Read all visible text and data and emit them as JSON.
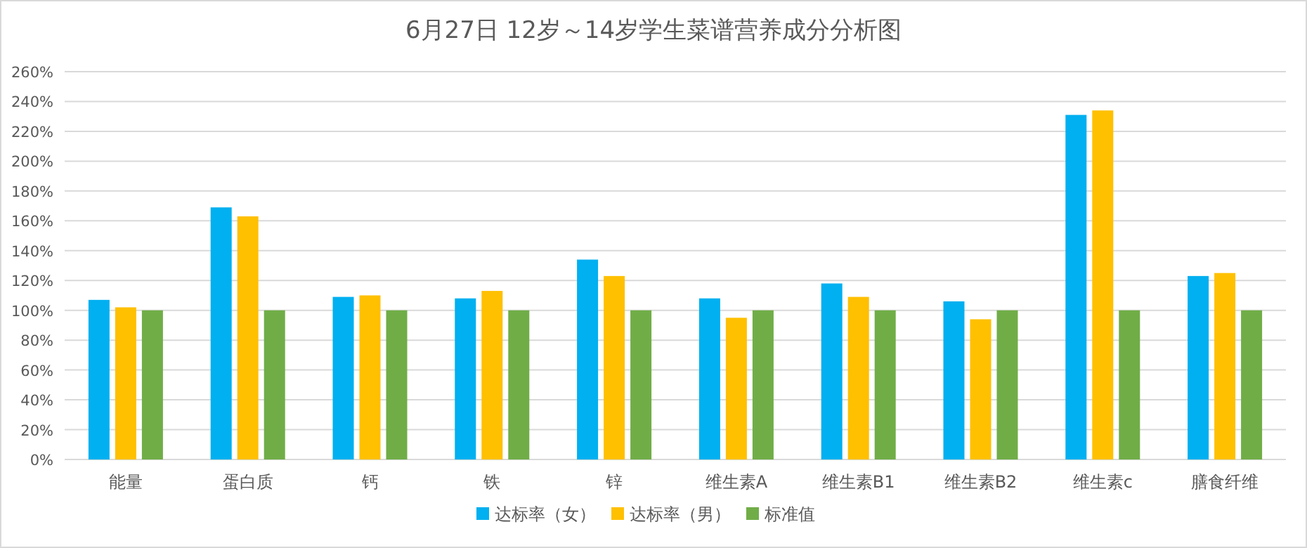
{
  "chart_data": {
    "type": "bar",
    "title": "6月27日 12岁～14岁学生菜谱营养成分分析图",
    "categories": [
      "能量",
      "蛋白质",
      "钙",
      "铁",
      "锌",
      "维生素A",
      "维生素B1",
      "维生素B2",
      "维生素c",
      "膳食纤维"
    ],
    "series": [
      {
        "name": "达标率（女）",
        "color": "#00b0f0",
        "values": [
          107,
          169,
          109,
          108,
          134,
          108,
          118,
          106,
          231,
          123
        ]
      },
      {
        "name": "达标率（男）",
        "color": "#ffc000",
        "values": [
          102,
          163,
          110,
          113,
          123,
          95,
          109,
          94,
          234,
          125
        ]
      },
      {
        "name": "标准值",
        "color": "#70ad47",
        "values": [
          100,
          100,
          100,
          100,
          100,
          100,
          100,
          100,
          100,
          100
        ]
      }
    ],
    "ylim": [
      0,
      260
    ],
    "yticks": [
      {
        "value": 0,
        "label": "0%"
      },
      {
        "value": 20,
        "label": "20%"
      },
      {
        "value": 40,
        "label": "40%"
      },
      {
        "value": 60,
        "label": "60%"
      },
      {
        "value": 80,
        "label": "80%"
      },
      {
        "value": 100,
        "label": "100%"
      },
      {
        "value": 120,
        "label": "120%"
      },
      {
        "value": 140,
        "label": "140%"
      },
      {
        "value": 160,
        "label": "160%"
      },
      {
        "value": 180,
        "label": "180%"
      },
      {
        "value": 200,
        "label": "200%"
      },
      {
        "value": 220,
        "label": "220%"
      },
      {
        "value": 240,
        "label": "240%"
      },
      {
        "value": 260,
        "label": "260%"
      }
    ],
    "grid": "y",
    "legend": "bottom"
  }
}
